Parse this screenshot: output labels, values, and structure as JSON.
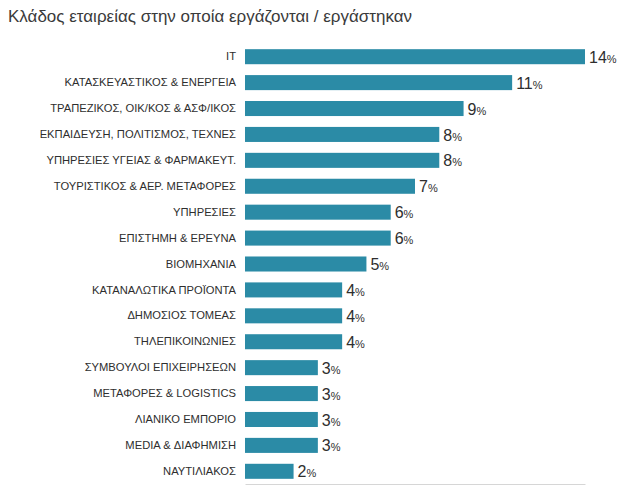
{
  "chart_data": {
    "type": "bar",
    "orientation": "horizontal",
    "title": "Κλάδος εταιρείας στην οποία εργάζονται / εργάστηκαν",
    "categories": [
      "IT",
      "ΚΑΤΑΣΚΕΥΑΣΤΙΚΟΣ & ΕΝΕΡΓΕΙΑ",
      "ΤΡΑΠΕΖΙΚΟΣ, ΟΙΚ/ΚΟΣ & ΑΣΦ/ΙΚΟΣ",
      "ΕΚΠΑΙΔΕΥΣΗ, ΠΟΛΙΤΙΣΜΟΣ, ΤΕΧΝΕΣ",
      "ΥΠΗΡΕΣΙΕΣ ΥΓΕΙΑΣ & ΦΑΡΜΑΚΕΥΤ.",
      "ΤΟΥΡΙΣΤΙΚΟΣ & ΑΕΡ. ΜΕΤΑΦΟΡΕΣ",
      "ΥΠΗΡΕΣΙΕΣ",
      "ΕΠΙΣΤΗΜΗ & ΕΡΕΥΝΑ",
      "ΒΙΟΜΗΧΑΝΙΑ",
      "ΚΑΤΑΝΑΛΩΤΙΚΑ ΠΡΟΪΟΝΤΑ",
      "ΔΗΜΟΣΙΟΣ ΤΟΜΕΑΣ",
      "ΤΗΛΕΠΙΚΟΙΝΩΝΙΕΣ",
      "ΣΥΜΒΟΥΛΟΙ ΕΠΙΧΕΙΡΗΣΕΩΝ",
      "ΜΕΤΑΦΟΡΕΣ & LOGISTICS",
      "ΛΙΑΝΙΚΟ ΕΜΠΟΡΙΟ",
      "MEDIA & ΔΙΑΦΗΜΙΣΗ",
      "ΝΑΥΤΙΛΙΑΚΟΣ"
    ],
    "values": [
      14,
      11,
      9,
      8,
      8,
      7,
      6,
      6,
      5,
      4,
      4,
      4,
      3,
      3,
      3,
      3,
      2
    ],
    "value_labels": [
      "14%",
      "11%",
      "9%",
      "8%",
      "8%",
      "7%",
      "6%",
      "6%",
      "5%",
      "4%",
      "4%",
      "4%",
      "3%",
      "3%",
      "3%",
      "3%",
      "2%"
    ],
    "color": "#2b8ba6",
    "xlim": [
      0,
      14
    ],
    "data_labels": true,
    "tick_labels": "y",
    "grid": false
  }
}
